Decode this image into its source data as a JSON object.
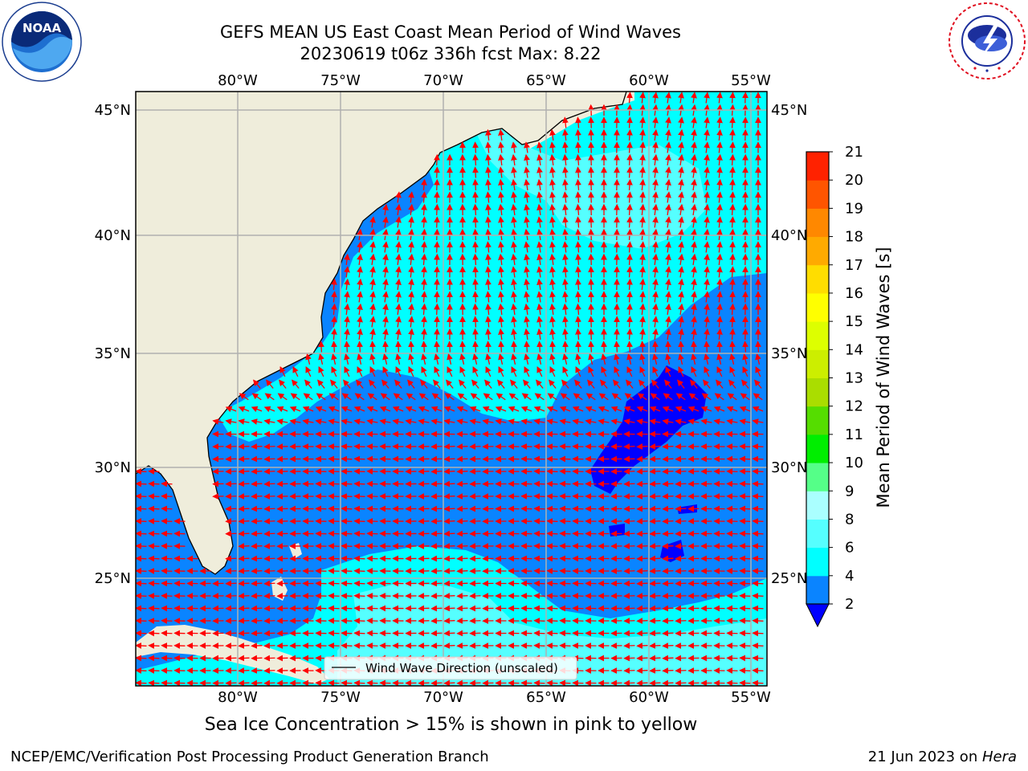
{
  "title": {
    "line1": "GEFS MEAN US East Coast Mean Period of Wind Waves",
    "line2": "20230619 t06z 336h fcst   Max: 8.22"
  },
  "logos": {
    "left": {
      "icon": "noaa-logo",
      "text": "NOAA"
    },
    "right": {
      "icon": "nws-logo",
      "text": "NATIONAL WEATHER SERVICE"
    }
  },
  "map": {
    "lon_labels": [
      "80°W",
      "75°W",
      "70°W",
      "65°W",
      "60°W",
      "55°W"
    ],
    "lat_labels": [
      "45°N",
      "40°N",
      "35°N",
      "30°N",
      "25°N"
    ],
    "legend_label": "Wind Wave Direction (unscaled)",
    "colors": {
      "land": "#efeddb",
      "bin_2_4": "#0a84ff",
      "bin_4_6": "#00ffff",
      "bin_6_8": "#55ffff",
      "bin_below_2": "#0000ff",
      "arrows": "#ff0000",
      "grid": "#b0b0b0"
    }
  },
  "colorbar": {
    "label": "Mean Period of Wind Waves [s]",
    "ticks": [
      "2",
      "4",
      "6",
      "8",
      "9",
      "10",
      "11",
      "12",
      "13",
      "14",
      "15",
      "16",
      "17",
      "18",
      "19",
      "20",
      "21"
    ],
    "colors": [
      "#0a84ff",
      "#00ffff",
      "#55ffff",
      "#aaffff",
      "#55ff88",
      "#00ee00",
      "#55dd00",
      "#aadd00",
      "#ccee00",
      "#ddff00",
      "#ffff00",
      "#ffdd00",
      "#ffaa00",
      "#ff8800",
      "#ff5500",
      "#ff2200"
    ],
    "underflow_color": "#0000ff"
  },
  "caption": "Sea Ice Concentration > 15% is shown in pink to yellow",
  "footer": {
    "left": "NCEP/EMC/Verification Post Processing Product Generation Branch",
    "right_date": "21 Jun 2023 on ",
    "right_machine": "Hera"
  }
}
